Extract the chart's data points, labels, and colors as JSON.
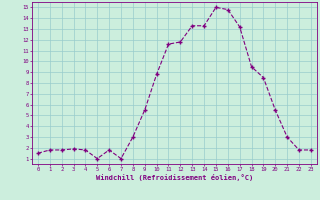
{
  "x": [
    0,
    1,
    2,
    3,
    4,
    5,
    6,
    7,
    8,
    9,
    10,
    11,
    12,
    13,
    14,
    15,
    16,
    17,
    18,
    19,
    20,
    21,
    22,
    23
  ],
  "y": [
    1.5,
    1.8,
    1.8,
    1.9,
    1.8,
    1.0,
    1.8,
    1.0,
    3.0,
    5.5,
    8.8,
    11.6,
    11.8,
    13.3,
    13.3,
    15.0,
    14.8,
    13.2,
    9.5,
    8.5,
    5.5,
    3.0,
    1.8,
    1.8
  ],
  "line_color": "#800080",
  "marker": "+",
  "marker_color": "#800080",
  "background_color": "#cceedd",
  "grid_color": "#99cccc",
  "xlabel": "Windchill (Refroidissement éolien,°C)",
  "xlim": [
    -0.5,
    23.5
  ],
  "ylim": [
    0.5,
    15.5
  ],
  "xticks": [
    0,
    1,
    2,
    3,
    4,
    5,
    6,
    7,
    8,
    9,
    10,
    11,
    12,
    13,
    14,
    15,
    16,
    17,
    18,
    19,
    20,
    21,
    22,
    23
  ],
  "yticks": [
    1,
    2,
    3,
    4,
    5,
    6,
    7,
    8,
    9,
    10,
    11,
    12,
    13,
    14,
    15
  ],
  "tick_color": "#800080",
  "label_color": "#800080",
  "spine_color": "#800080",
  "font_family": "monospace"
}
